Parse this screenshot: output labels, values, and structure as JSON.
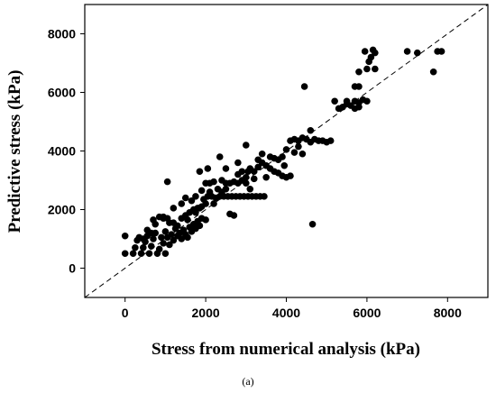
{
  "figure": {
    "caption": "(a)"
  },
  "chart_data": {
    "type": "scatter",
    "title": "",
    "xlabel": "Stress from numerical analysis (kPa)",
    "ylabel": "Predictive stress (kPa)",
    "xlim": [
      -1000,
      9000
    ],
    "ylim": [
      -1000,
      9000
    ],
    "xticks": [
      0,
      2000,
      4000,
      6000,
      8000
    ],
    "yticks": [
      0,
      2000,
      4000,
      6000,
      8000
    ],
    "xtick_labels": [
      "0",
      "2000",
      "4000",
      "6000",
      "8000"
    ],
    "ytick_labels": [
      "0",
      "2000",
      "4000",
      "6000",
      "8000"
    ],
    "grid": false,
    "legend": "none",
    "marker_color": "#000000",
    "reference_line": {
      "style": "dashed",
      "from": [
        -1000,
        -1000
      ],
      "to": [
        9000,
        9000
      ]
    },
    "series": [
      {
        "points": [
          [
            0,
            500
          ],
          [
            0,
            1100
          ],
          [
            200,
            500
          ],
          [
            250,
            700
          ],
          [
            300,
            950
          ],
          [
            350,
            1050
          ],
          [
            400,
            500
          ],
          [
            450,
            700
          ],
          [
            500,
            900
          ],
          [
            550,
            1100
          ],
          [
            600,
            500
          ],
          [
            650,
            750
          ],
          [
            700,
            1000
          ],
          [
            750,
            1200
          ],
          [
            800,
            500
          ],
          [
            850,
            650
          ],
          [
            900,
            1050
          ],
          [
            950,
            850
          ],
          [
            1000,
            500
          ],
          [
            1000,
            1250
          ],
          [
            1050,
            1050
          ],
          [
            1100,
            800
          ],
          [
            1150,
            1150
          ],
          [
            1200,
            950
          ],
          [
            1250,
            1350
          ],
          [
            1300,
            1100
          ],
          [
            1350,
            1200
          ],
          [
            1400,
            1000
          ],
          [
            1450,
            1300
          ],
          [
            1500,
            1150
          ],
          [
            1550,
            1050
          ],
          [
            1600,
            1400
          ],
          [
            1650,
            1250
          ],
          [
            1700,
            1500
          ],
          [
            1750,
            1350
          ],
          [
            1800,
            1600
          ],
          [
            1850,
            1450
          ],
          [
            1900,
            1700
          ],
          [
            450,
            1000
          ],
          [
            550,
            1300
          ],
          [
            650,
            1200
          ],
          [
            750,
            1500
          ],
          [
            850,
            1750
          ],
          [
            950,
            1700
          ],
          [
            1050,
            1700
          ],
          [
            1100,
            1550
          ],
          [
            1200,
            1550
          ],
          [
            1300,
            1450
          ],
          [
            1400,
            1700
          ],
          [
            1500,
            1800
          ],
          [
            1600,
            1900
          ],
          [
            1700,
            2000
          ],
          [
            1800,
            2050
          ],
          [
            1900,
            2100
          ],
          [
            2000,
            1650
          ],
          [
            2000,
            2200
          ],
          [
            1750,
            1900
          ],
          [
            1550,
            1650
          ],
          [
            1650,
            2300
          ],
          [
            1750,
            2450
          ],
          [
            1850,
            2050
          ],
          [
            1950,
            2350
          ],
          [
            2050,
            2450
          ],
          [
            2150,
            2450
          ],
          [
            2250,
            2400
          ],
          [
            2350,
            2450
          ],
          [
            2450,
            2450
          ],
          [
            2550,
            2450
          ],
          [
            2650,
            2450
          ],
          [
            2750,
            2450
          ],
          [
            2850,
            2450
          ],
          [
            2950,
            2450
          ],
          [
            3050,
            2450
          ],
          [
            3150,
            2450
          ],
          [
            3250,
            2450
          ],
          [
            3350,
            2450
          ],
          [
            3450,
            2450
          ],
          [
            2100,
            2900
          ],
          [
            2200,
            2950
          ],
          [
            2300,
            2700
          ],
          [
            2400,
            2600
          ],
          [
            2500,
            2900
          ],
          [
            2600,
            2900
          ],
          [
            2700,
            2950
          ],
          [
            2800,
            2900
          ],
          [
            2900,
            3000
          ],
          [
            3000,
            2900
          ],
          [
            3100,
            2700
          ],
          [
            2500,
            2700
          ],
          [
            2600,
            1850
          ],
          [
            2700,
            1800
          ],
          [
            1900,
            2650
          ],
          [
            2000,
            2900
          ],
          [
            2100,
            2600
          ],
          [
            2200,
            2200
          ],
          [
            3000,
            3100
          ],
          [
            3050,
            3300
          ],
          [
            3100,
            3400
          ],
          [
            3200,
            3300
          ],
          [
            3300,
            3450
          ],
          [
            3400,
            3600
          ],
          [
            3500,
            3500
          ],
          [
            3600,
            3800
          ],
          [
            3700,
            3750
          ],
          [
            3800,
            3700
          ],
          [
            3900,
            3800
          ],
          [
            3950,
            3500
          ],
          [
            3600,
            3400
          ],
          [
            3700,
            3300
          ],
          [
            3800,
            3250
          ],
          [
            3900,
            3150
          ],
          [
            4000,
            3100
          ],
          [
            4100,
            3150
          ],
          [
            3300,
            3700
          ],
          [
            3400,
            3900
          ],
          [
            3200,
            3050
          ],
          [
            3500,
            3100
          ],
          [
            2900,
            3300
          ],
          [
            2800,
            3200
          ],
          [
            4000,
            4050
          ],
          [
            4100,
            4350
          ],
          [
            4200,
            4400
          ],
          [
            4300,
            4350
          ],
          [
            4400,
            4450
          ],
          [
            4500,
            4400
          ],
          [
            4600,
            4300
          ],
          [
            4700,
            4400
          ],
          [
            4800,
            4350
          ],
          [
            4900,
            4350
          ],
          [
            5000,
            4300
          ],
          [
            5100,
            4350
          ],
          [
            4300,
            4150
          ],
          [
            4200,
            3950
          ],
          [
            4400,
            3900
          ],
          [
            4600,
            4700
          ],
          [
            4450,
            6200
          ],
          [
            4650,
            1500
          ],
          [
            5200,
            5700
          ],
          [
            5300,
            5450
          ],
          [
            5400,
            5500
          ],
          [
            5500,
            5600
          ],
          [
            5600,
            5550
          ],
          [
            5700,
            5700
          ],
          [
            5800,
            5650
          ],
          [
            5900,
            5750
          ],
          [
            5500,
            5700
          ],
          [
            5700,
            5450
          ],
          [
            5800,
            5500
          ],
          [
            6000,
            5700
          ],
          [
            5700,
            6200
          ],
          [
            5800,
            6200
          ],
          [
            5950,
            7400
          ],
          [
            6150,
            7450
          ],
          [
            6200,
            7350
          ],
          [
            5800,
            6700
          ],
          [
            6000,
            6800
          ],
          [
            6200,
            6800
          ],
          [
            6100,
            7200
          ],
          [
            6050,
            7050
          ],
          [
            7000,
            7400
          ],
          [
            7250,
            7350
          ],
          [
            7650,
            6700
          ],
          [
            7750,
            7400
          ],
          [
            7850,
            7400
          ],
          [
            1050,
            2950
          ],
          [
            1400,
            2200
          ],
          [
            1850,
            3300
          ],
          [
            2050,
            3400
          ],
          [
            2350,
            3800
          ],
          [
            2500,
            3400
          ],
          [
            2800,
            3600
          ],
          [
            3000,
            4200
          ],
          [
            2400,
            3000
          ],
          [
            1500,
            2400
          ],
          [
            1200,
            2050
          ],
          [
            950,
            1750
          ],
          [
            700,
            1650
          ]
        ]
      }
    ]
  }
}
